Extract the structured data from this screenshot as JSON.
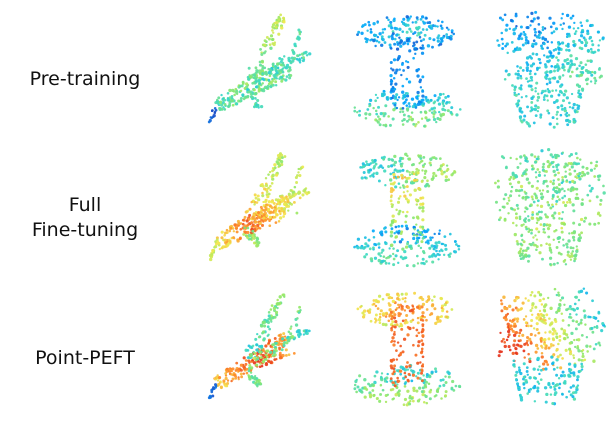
{
  "rows": [
    {
      "id": "pre-training",
      "label": "Pre-training",
      "scheme": "pretraining"
    },
    {
      "id": "full-fine-tuning",
      "label": "Full\nFine-tuning",
      "scheme": "full"
    },
    {
      "id": "point-peft",
      "label": "Point-PEFT",
      "scheme": "peft"
    }
  ],
  "objects": [
    "airplane",
    "spool",
    "pot"
  ],
  "colormap": [
    "#1f3fbf",
    "#00a5ff",
    "#38d8c8",
    "#8ee86a",
    "#f2e94e",
    "#ff8c2a",
    "#e5311b"
  ]
}
